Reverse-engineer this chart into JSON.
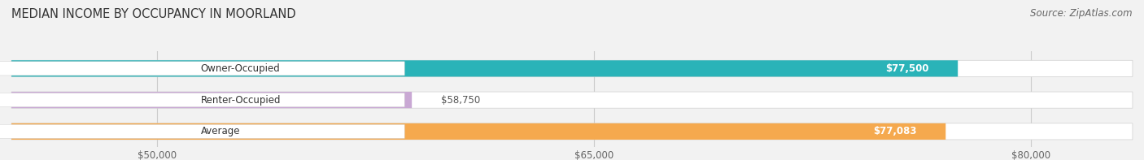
{
  "title": "MEDIAN INCOME BY OCCUPANCY IN MOORLAND",
  "source": "Source: ZipAtlas.com",
  "categories": [
    "Owner-Occupied",
    "Renter-Occupied",
    "Average"
  ],
  "values": [
    77500,
    58750,
    77083
  ],
  "labels": [
    "$77,500",
    "$58,750",
    "$77,083"
  ],
  "bar_colors": [
    "#2ab3b8",
    "#c9a8d4",
    "#f5a94e"
  ],
  "background_color": "#f2f2f2",
  "xmin": 45000,
  "xmax": 83500,
  "xticks": [
    50000,
    65000,
    80000
  ],
  "xticklabels": [
    "$50,000",
    "$65,000",
    "$80,000"
  ],
  "title_fontsize": 10.5,
  "label_fontsize": 8.5,
  "tick_fontsize": 8.5,
  "source_fontsize": 8.5
}
